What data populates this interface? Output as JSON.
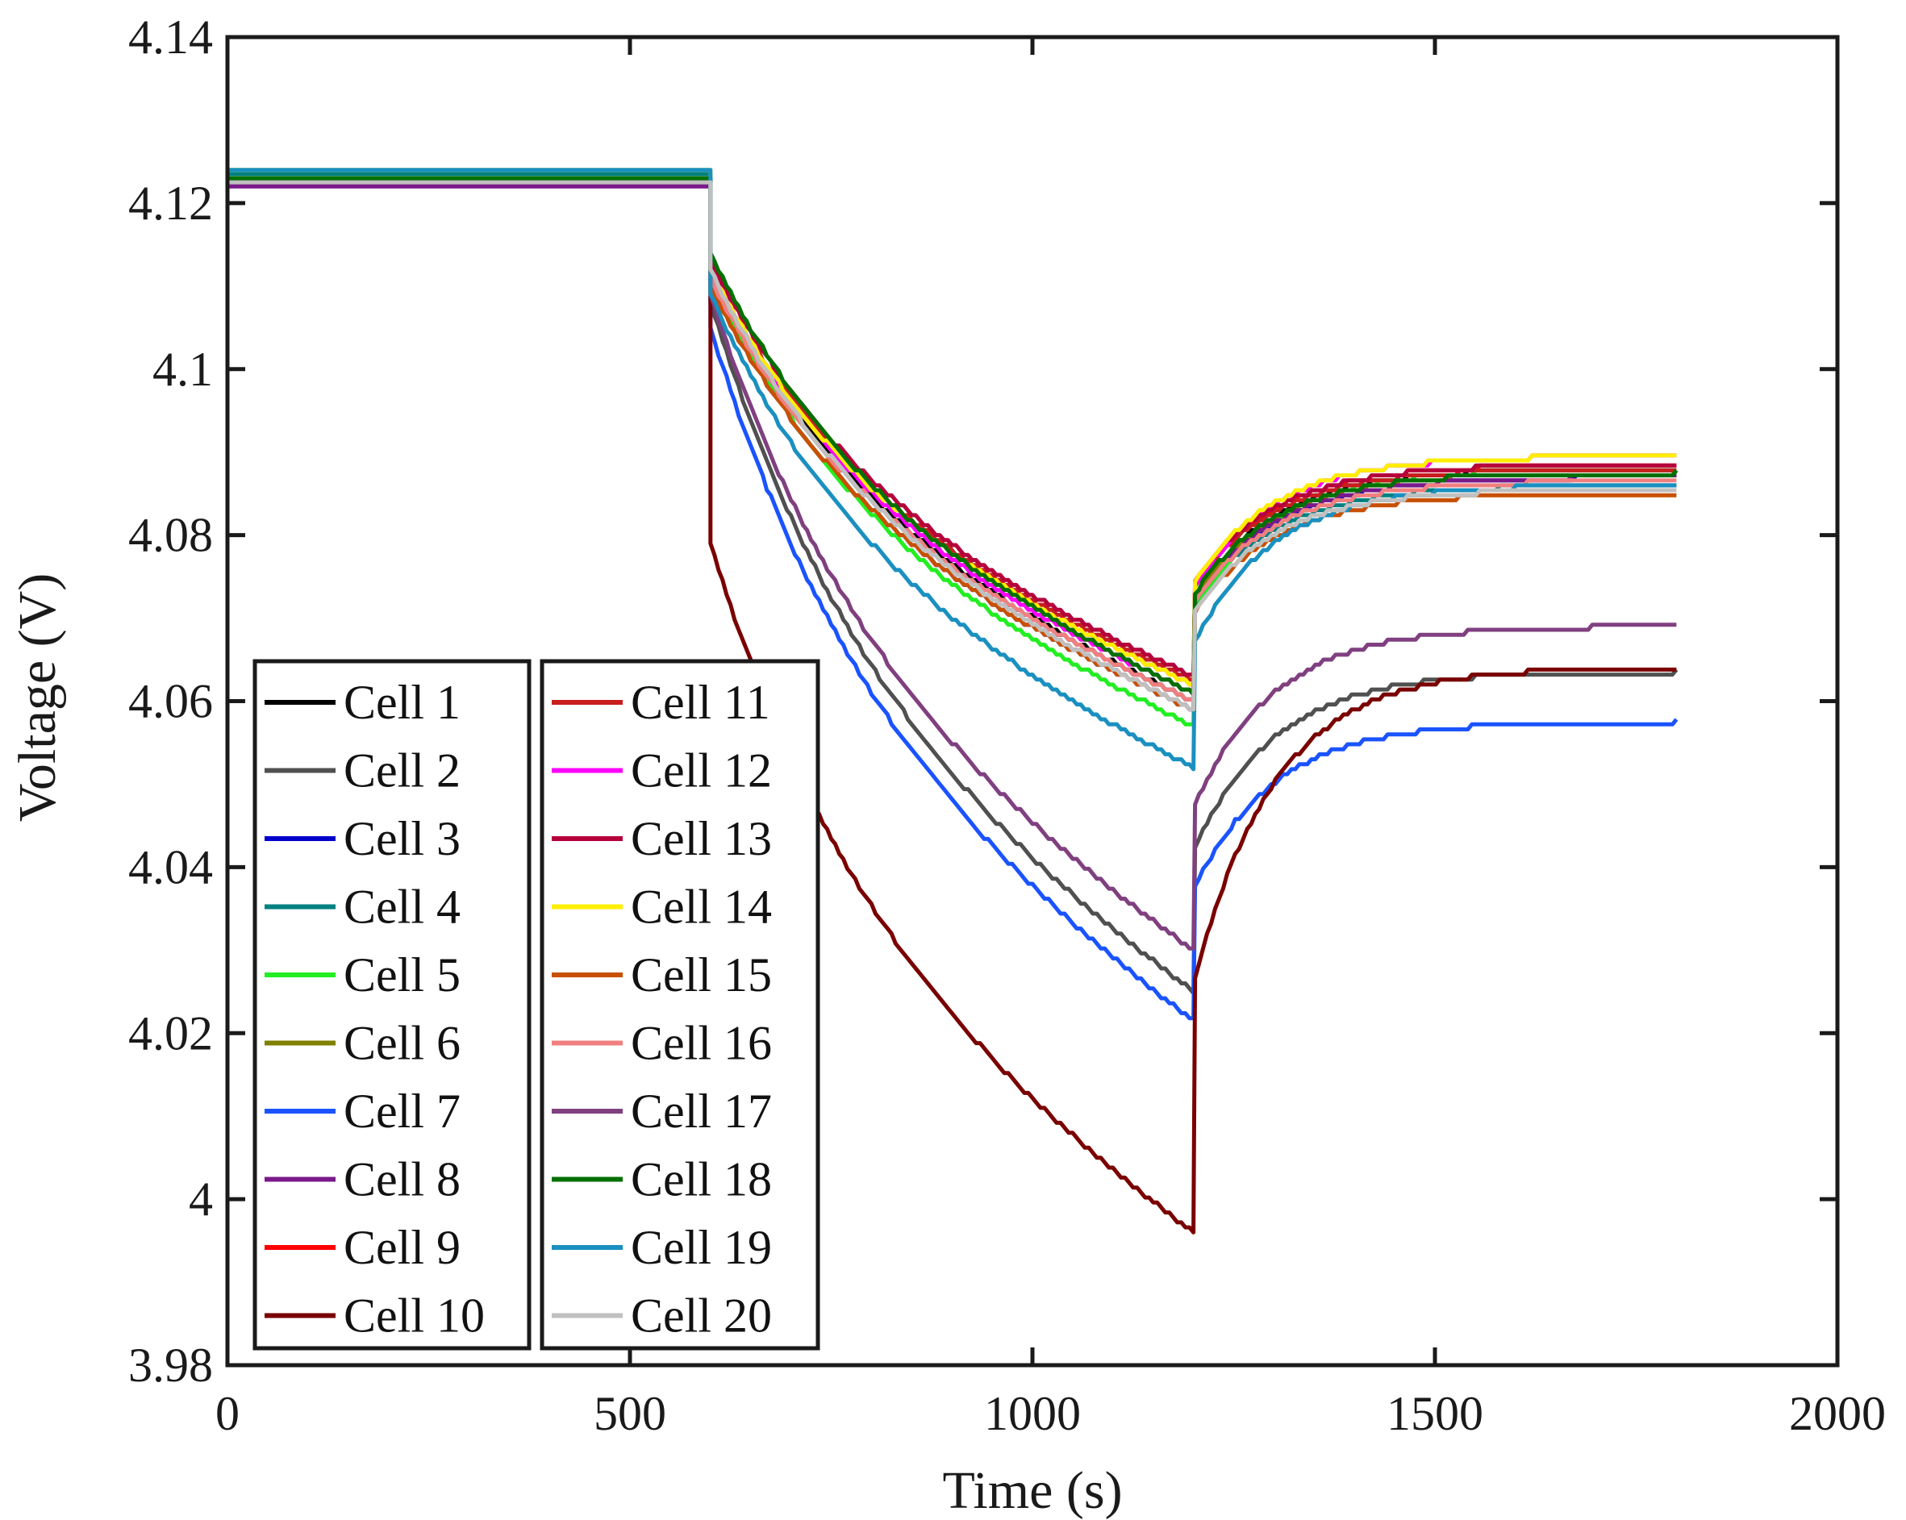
{
  "chart_data": {
    "type": "line",
    "title": "",
    "xlabel": "Time (s)",
    "ylabel": "Voltage (V)",
    "xlim": [
      0,
      2000
    ],
    "ylim": [
      3.98,
      4.14
    ],
    "x_ticks": [
      0,
      500,
      1000,
      1500,
      2000
    ],
    "x_tick_labels": [
      "0",
      "500",
      "1000",
      "1500",
      "2000"
    ],
    "y_ticks": [
      3.98,
      4.0,
      4.02,
      4.04,
      4.06,
      4.08,
      4.1,
      4.12,
      4.14
    ],
    "y_tick_labels": [
      "3.98",
      "4",
      "4.02",
      "4.04",
      "4.06",
      "4.08",
      "4.1",
      "4.12",
      "4.14"
    ],
    "grid": false,
    "legend_placement": "bottom-left, two columns",
    "series": [
      {
        "name": "Cell 1",
        "color": "#000000",
        "rest_v": 4.1225,
        "start_v": 4.112,
        "end_v": 4.06,
        "recover_v": 4.088
      },
      {
        "name": "Cell 2",
        "color": "#505050",
        "rest_v": 4.123,
        "start_v": 4.108,
        "end_v": 4.025,
        "recover_v": 4.0635
      },
      {
        "name": "Cell 3",
        "color": "#0000cc",
        "rest_v": 4.1225,
        "start_v": 4.11,
        "end_v": 4.059,
        "recover_v": 4.087
      },
      {
        "name": "Cell 4",
        "color": "#008080",
        "rest_v": 4.1235,
        "start_v": 4.111,
        "end_v": 4.06,
        "recover_v": 4.086
      },
      {
        "name": "Cell 5",
        "color": "#22ee22",
        "rest_v": 4.123,
        "start_v": 4.111,
        "end_v": 4.057,
        "recover_v": 4.088
      },
      {
        "name": "Cell 6",
        "color": "#808000",
        "rest_v": 4.123,
        "start_v": 4.111,
        "end_v": 4.06,
        "recover_v": 4.0875
      },
      {
        "name": "Cell 7",
        "color": "#1a53ff",
        "rest_v": 4.1225,
        "start_v": 4.105,
        "end_v": 4.0215,
        "recover_v": 4.0575
      },
      {
        "name": "Cell 8",
        "color": "#7a1a8a",
        "rest_v": 4.122,
        "start_v": 4.111,
        "end_v": 4.06,
        "recover_v": 4.087
      },
      {
        "name": "Cell 9",
        "color": "#ff0000",
        "rest_v": 4.123,
        "start_v": 4.112,
        "end_v": 4.062,
        "recover_v": 4.0885
      },
      {
        "name": "Cell 10",
        "color": "#7a0000",
        "rest_v": 4.1225,
        "start_v": 4.079,
        "end_v": 3.996,
        "recover_v": 4.064
      },
      {
        "name": "Cell 11",
        "color": "#c81e1e",
        "rest_v": 4.123,
        "start_v": 4.112,
        "end_v": 4.0625,
        "recover_v": 4.088
      },
      {
        "name": "Cell 12",
        "color": "#ff00ff",
        "rest_v": 4.123,
        "start_v": 4.112,
        "end_v": 4.061,
        "recover_v": 4.0895
      },
      {
        "name": "Cell 13",
        "color": "#b5003c",
        "rest_v": 4.123,
        "start_v": 4.113,
        "end_v": 4.063,
        "recover_v": 4.0885
      },
      {
        "name": "Cell 14",
        "color": "#ffee00",
        "rest_v": 4.124,
        "start_v": 4.112,
        "end_v": 4.062,
        "recover_v": 4.0895
      },
      {
        "name": "Cell 15",
        "color": "#c85000",
        "rest_v": 4.123,
        "start_v": 4.11,
        "end_v": 4.059,
        "recover_v": 4.085
      },
      {
        "name": "Cell 16",
        "color": "#f08080",
        "rest_v": 4.123,
        "start_v": 4.111,
        "end_v": 4.06,
        "recover_v": 4.0865
      },
      {
        "name": "Cell 17",
        "color": "#804080",
        "rest_v": 4.123,
        "start_v": 4.109,
        "end_v": 4.03,
        "recover_v": 4.069
      },
      {
        "name": "Cell 18",
        "color": "#007000",
        "rest_v": 4.123,
        "start_v": 4.114,
        "end_v": 4.061,
        "recover_v": 4.0875
      },
      {
        "name": "Cell 19",
        "color": "#1a90c0",
        "rest_v": 4.124,
        "start_v": 4.109,
        "end_v": 4.052,
        "recover_v": 4.086
      },
      {
        "name": "Cell 20",
        "color": "#c0c0c0",
        "rest_v": 4.1225,
        "start_v": 4.112,
        "end_v": 4.059,
        "recover_v": 4.0855
      }
    ],
    "segments": {
      "rest_end_s": 600,
      "discharge_end_s": 1200,
      "recovery_end_s": 1800
    }
  }
}
